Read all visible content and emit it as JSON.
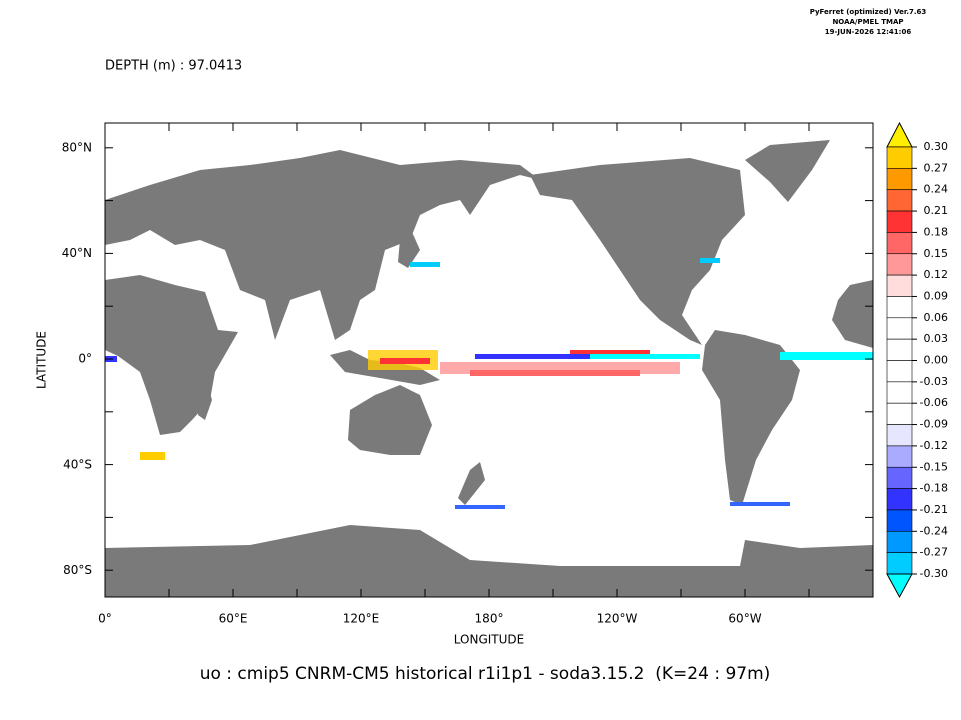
{
  "header": {
    "software": "PyFerret (optimized) Ver.7.63",
    "org": "NOAA/PMEL TMAP",
    "timestamp": "19-JUN-2026 12:41:06",
    "depth": "DEPTH (m) : 97.0413"
  },
  "axes": {
    "x_title": "LONGITUDE",
    "y_title": "LATITUDE",
    "x_labels": [
      "0°",
      "60°E",
      "120°E",
      "180°",
      "120°W",
      "60°W"
    ],
    "y_labels": [
      "80°N",
      "40°N",
      "0°",
      "40°S",
      "80°S"
    ]
  },
  "colorbar": {
    "labels": [
      "0.30",
      "0.27",
      "0.24",
      "0.21",
      "0.18",
      "0.15",
      "0.12",
      "0.09",
      "0.06",
      "0.03",
      "0.00",
      "-0.03",
      "-0.06",
      "-0.09",
      "-0.12",
      "-0.15",
      "-0.18",
      "-0.21",
      "-0.24",
      "-0.27",
      "-0.30"
    ],
    "colors": [
      "#ffee00",
      "#ffcc00",
      "#ff9900",
      "#ff6633",
      "#ff3333",
      "#ff6666",
      "#ff9999",
      "#ffdddd",
      "#ffffff",
      "#ffffff",
      "#ffffff",
      "#ffffff",
      "#ffffff",
      "#ffffff",
      "#e6e6ff",
      "#aaaaff",
      "#6666ff",
      "#3333ff",
      "#0055ff",
      "#0099ff",
      "#00ccff",
      "#00ffff"
    ]
  },
  "caption": "uo : cmip5 CNRM-CM5 historical r1i1p1 - soda3.15.2  (K=24 : 97m)"
}
